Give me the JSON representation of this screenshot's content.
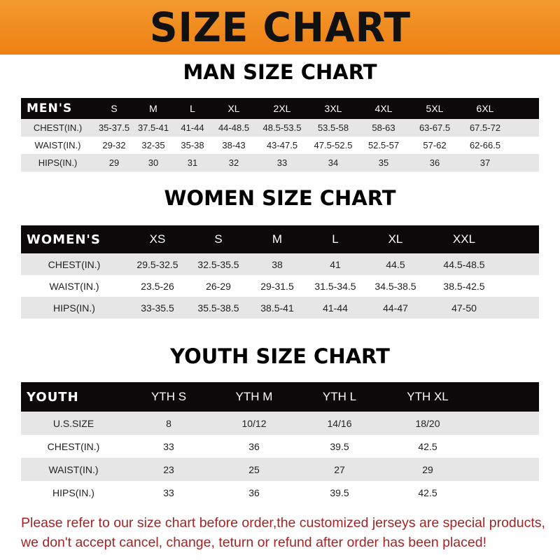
{
  "banner_title": "SIZE CHART",
  "colors": {
    "banner": "#ee7f12",
    "header_row": "#0b0909",
    "stripe": "#e6e6e6",
    "note": "#a32424"
  },
  "men": {
    "title": "MAN SIZE CHART",
    "header": [
      "MEN'S",
      "S",
      "M",
      "L",
      "XL",
      "2XL",
      "3XL",
      "4XL",
      "5XL",
      "6XL"
    ],
    "rows": [
      [
        "CHEST(IN.)",
        "35-37.5",
        "37.5-41",
        "41-44",
        "44-48.5",
        "48.5-53.5",
        "53.5-58",
        "58-63",
        "63-67.5",
        "67.5-72"
      ],
      [
        "WAIST(IN.)",
        "29-32",
        "32-35",
        "35-38",
        "38-43",
        "43-47.5",
        "47.5-52.5",
        "52.5-57",
        "57-62",
        "62-66.5"
      ],
      [
        "HIPS(IN.)",
        "29",
        "30",
        "31",
        "32",
        "33",
        "34",
        "35",
        "36",
        "37"
      ]
    ]
  },
  "women": {
    "title": "WOMEN SIZE CHART",
    "header": [
      "WOMEN'S",
      "XS",
      "S",
      "M",
      "L",
      "XL",
      "XXL"
    ],
    "rows": [
      [
        "CHEST(IN.)",
        "29.5-32.5",
        "32.5-35.5",
        "38",
        "41",
        "44.5",
        "44.5-48.5"
      ],
      [
        "WAIST(IN.)",
        "23.5-26",
        "26-29",
        "29-31.5",
        "31.5-34.5",
        "34.5-38.5",
        "38.5-42.5"
      ],
      [
        "HIPS(IN.)",
        "33-35.5",
        "35.5-38.5",
        "38.5-41",
        "41-44",
        "44-47",
        "47-50"
      ]
    ]
  },
  "youth": {
    "title": "YOUTH SIZE CHART",
    "header": [
      "YOUTH",
      "YTH S",
      "YTH M",
      "YTH L",
      "YTH XL"
    ],
    "rows": [
      [
        "U.S.SIZE",
        "8",
        "10/12",
        "14/16",
        "18/20"
      ],
      [
        "CHEST(IN.)",
        "33",
        "36",
        "39.5",
        "42.5"
      ],
      [
        "WAIST(IN.)",
        "23",
        "25",
        "27",
        "29"
      ],
      [
        "HIPS(IN.)",
        "33",
        "36",
        "39.5",
        "42.5"
      ]
    ]
  },
  "note": {
    "line1": "Please refer to our size chart before order,the customized jerseys are special products,",
    "line2": "we don't accept cancel, change, teturn or refund after order has been placed!"
  }
}
